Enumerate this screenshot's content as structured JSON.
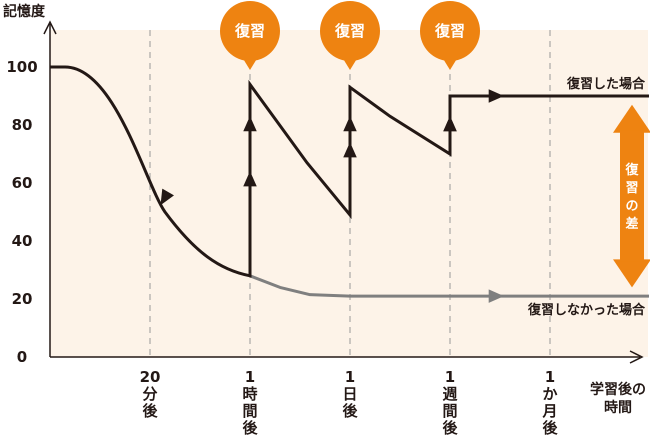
{
  "chart_data": {
    "type": "line",
    "title": "",
    "ylabel": "記憶度",
    "xlabel_lines": [
      "学習後の",
      "時間"
    ],
    "ylim": [
      0,
      100
    ],
    "yticks": [
      0,
      20,
      40,
      60,
      80,
      100
    ],
    "x_categories": [
      {
        "x": 1,
        "lines": [
          "20",
          "分",
          "後"
        ]
      },
      {
        "x": 2,
        "lines": [
          "1",
          "時",
          "間",
          "後"
        ]
      },
      {
        "x": 3,
        "lines": [
          "1",
          "日",
          "後"
        ]
      },
      {
        "x": 4,
        "lines": [
          "1",
          "週",
          "間",
          "後"
        ]
      },
      {
        "x": 5,
        "lines": [
          "1",
          "か",
          "月",
          "後"
        ]
      }
    ],
    "series": [
      {
        "name": "復習した場合",
        "color": "#231815",
        "points": [
          [
            0,
            100
          ],
          [
            0.3,
            99
          ],
          [
            0.6,
            90
          ],
          [
            0.9,
            72
          ],
          [
            1.1,
            54
          ],
          [
            1.5,
            38
          ],
          [
            2,
            28
          ],
          [
            2,
            94
          ],
          [
            2.57,
            67
          ],
          [
            3,
            49
          ],
          [
            3,
            93
          ],
          [
            3.4,
            83
          ],
          [
            4,
            70
          ],
          [
            4,
            90
          ],
          [
            5.99,
            90
          ]
        ]
      },
      {
        "name": "復習しなかった場合",
        "color": "#7f7f7f",
        "points": [
          [
            2,
            28
          ],
          [
            2.3,
            24
          ],
          [
            2.6,
            21.5
          ],
          [
            3,
            21
          ],
          [
            5.99,
            21
          ]
        ]
      }
    ],
    "review_markers": [
      {
        "x": 2,
        "label": "復習"
      },
      {
        "x": 3,
        "label": "復習"
      },
      {
        "x": 4,
        "label": "復習"
      }
    ],
    "difference_label": "復習の差",
    "colors": {
      "accent": "#ee8311",
      "background": "#fdf3e8",
      "reviewed": "#231815",
      "not_reviewed": "#7f7f7f",
      "grid": "#999999"
    }
  }
}
